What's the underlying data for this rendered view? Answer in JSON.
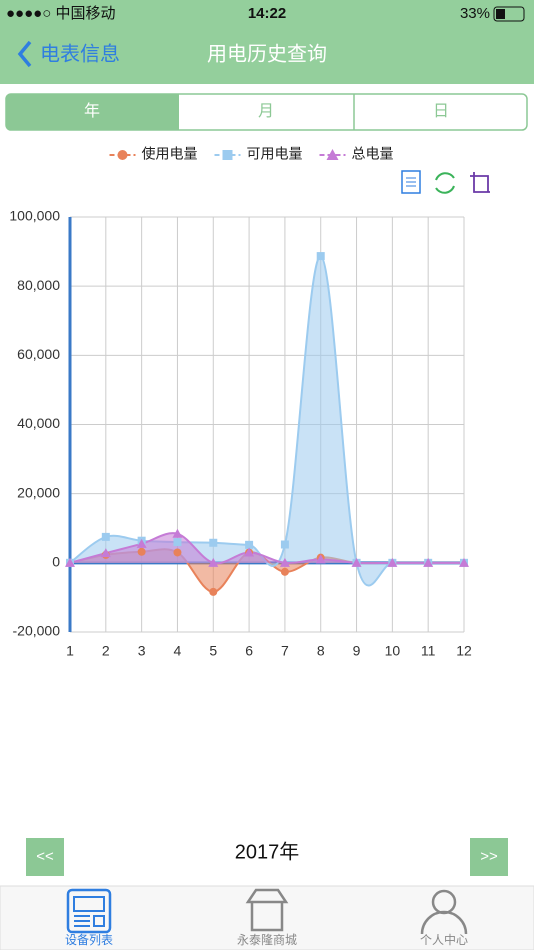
{
  "status_bar": {
    "carrier": "●●●●○ 中国移动",
    "time": "14:22",
    "battery": "33%"
  },
  "nav": {
    "back": "电表信息",
    "title": "用电历史查询"
  },
  "tabs": [
    "年",
    "月",
    "日"
  ],
  "chart_data": {
    "type": "area",
    "smooth": true,
    "x": [
      1,
      2,
      3,
      4,
      5,
      6,
      7,
      8,
      9,
      10,
      11,
      12
    ],
    "xlim": [
      1,
      12
    ],
    "xticks": [
      1,
      2,
      3,
      4,
      5,
      6,
      7,
      8,
      9,
      10,
      11,
      12
    ],
    "ylim": [
      -20000,
      100000
    ],
    "yticks": [
      {
        "value": -20000,
        "label": "-20,000"
      },
      0,
      {
        "value": 20000,
        "label": "20,000"
      },
      {
        "value": 40000,
        "label": "40,000"
      },
      {
        "value": 60000,
        "label": "60,000"
      },
      {
        "value": 80000,
        "label": "80,000"
      },
      {
        "value": 100000,
        "label": "100,000"
      }
    ],
    "grid": true,
    "series": [
      {
        "name": "使用电量",
        "color": "#e8825a",
        "marker": "circle",
        "values": [
          0,
          2300,
          3200,
          3000,
          -8400,
          3000,
          -2600,
          1500,
          0,
          0,
          0,
          0
        ]
      },
      {
        "name": "可用电量",
        "color": "#9ccbef",
        "marker": "square",
        "values": [
          0,
          7500,
          6400,
          6000,
          5800,
          5200,
          5300,
          88700,
          0,
          0,
          0,
          0
        ]
      },
      {
        "name": "总电量",
        "color": "#c57bd6",
        "marker": "triangle",
        "values": [
          0,
          2800,
          5500,
          8400,
          0,
          3000,
          0,
          1000,
          0,
          0,
          0,
          0
        ]
      }
    ]
  },
  "footer": {
    "prev": "<<",
    "year": "2017年",
    "next": ">>"
  },
  "tab_bar": [
    "设备列表",
    "永泰隆商城",
    "个人中心"
  ]
}
